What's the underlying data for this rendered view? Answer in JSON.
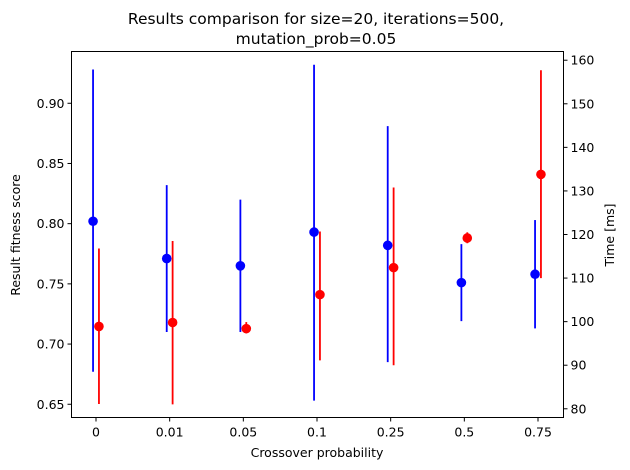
{
  "chart_data": {
    "type": "scatter",
    "title": [
      "Results comparison for size=20, iterations=500,",
      "mutation_prob=0.05"
    ],
    "xlabel": "Crossover probability",
    "ylabel_left": "Result fitness score",
    "ylabel_right": "Time [ms]",
    "categories": [
      "0",
      "0.01",
      "0.05",
      "0.1",
      "0.25",
      "0.5",
      "0.75"
    ],
    "ylim_left": [
      0.639,
      0.943
    ],
    "ylim_right": [
      78,
      162
    ],
    "yticks_left": [
      0.65,
      0.7,
      0.75,
      0.8,
      0.85,
      0.9
    ],
    "yticks_left_labels": [
      "0.65",
      "0.70",
      "0.75",
      "0.80",
      "0.85",
      "0.90"
    ],
    "yticks_right": [
      80,
      90,
      100,
      110,
      120,
      130,
      140,
      150,
      160
    ],
    "yticks_right_labels": [
      "80",
      "90",
      "100",
      "110",
      "120",
      "130",
      "140",
      "150",
      "160"
    ],
    "series": [
      {
        "axis": "left",
        "color": "#0000ff",
        "offset": -0.04,
        "values": [
          0.802,
          0.771,
          0.765,
          0.793,
          0.782,
          0.751,
          0.758
        ],
        "err_low": [
          0.677,
          0.71,
          0.71,
          0.653,
          0.685,
          0.719,
          0.713
        ],
        "err_high": [
          0.928,
          0.832,
          0.82,
          0.932,
          0.881,
          0.783,
          0.803
        ]
      },
      {
        "axis": "right",
        "color": "#ff0000",
        "offset": 0.04,
        "values": [
          98.9,
          99.8,
          98.4,
          106.2,
          112.4,
          119.2,
          133.8
        ],
        "err_low": [
          81.1,
          81.0,
          97.3,
          91.1,
          90.0,
          118.0,
          110.0
        ],
        "err_high": [
          116.8,
          118.5,
          99.9,
          120.7,
          130.8,
          120.5,
          157.7
        ]
      }
    ]
  }
}
